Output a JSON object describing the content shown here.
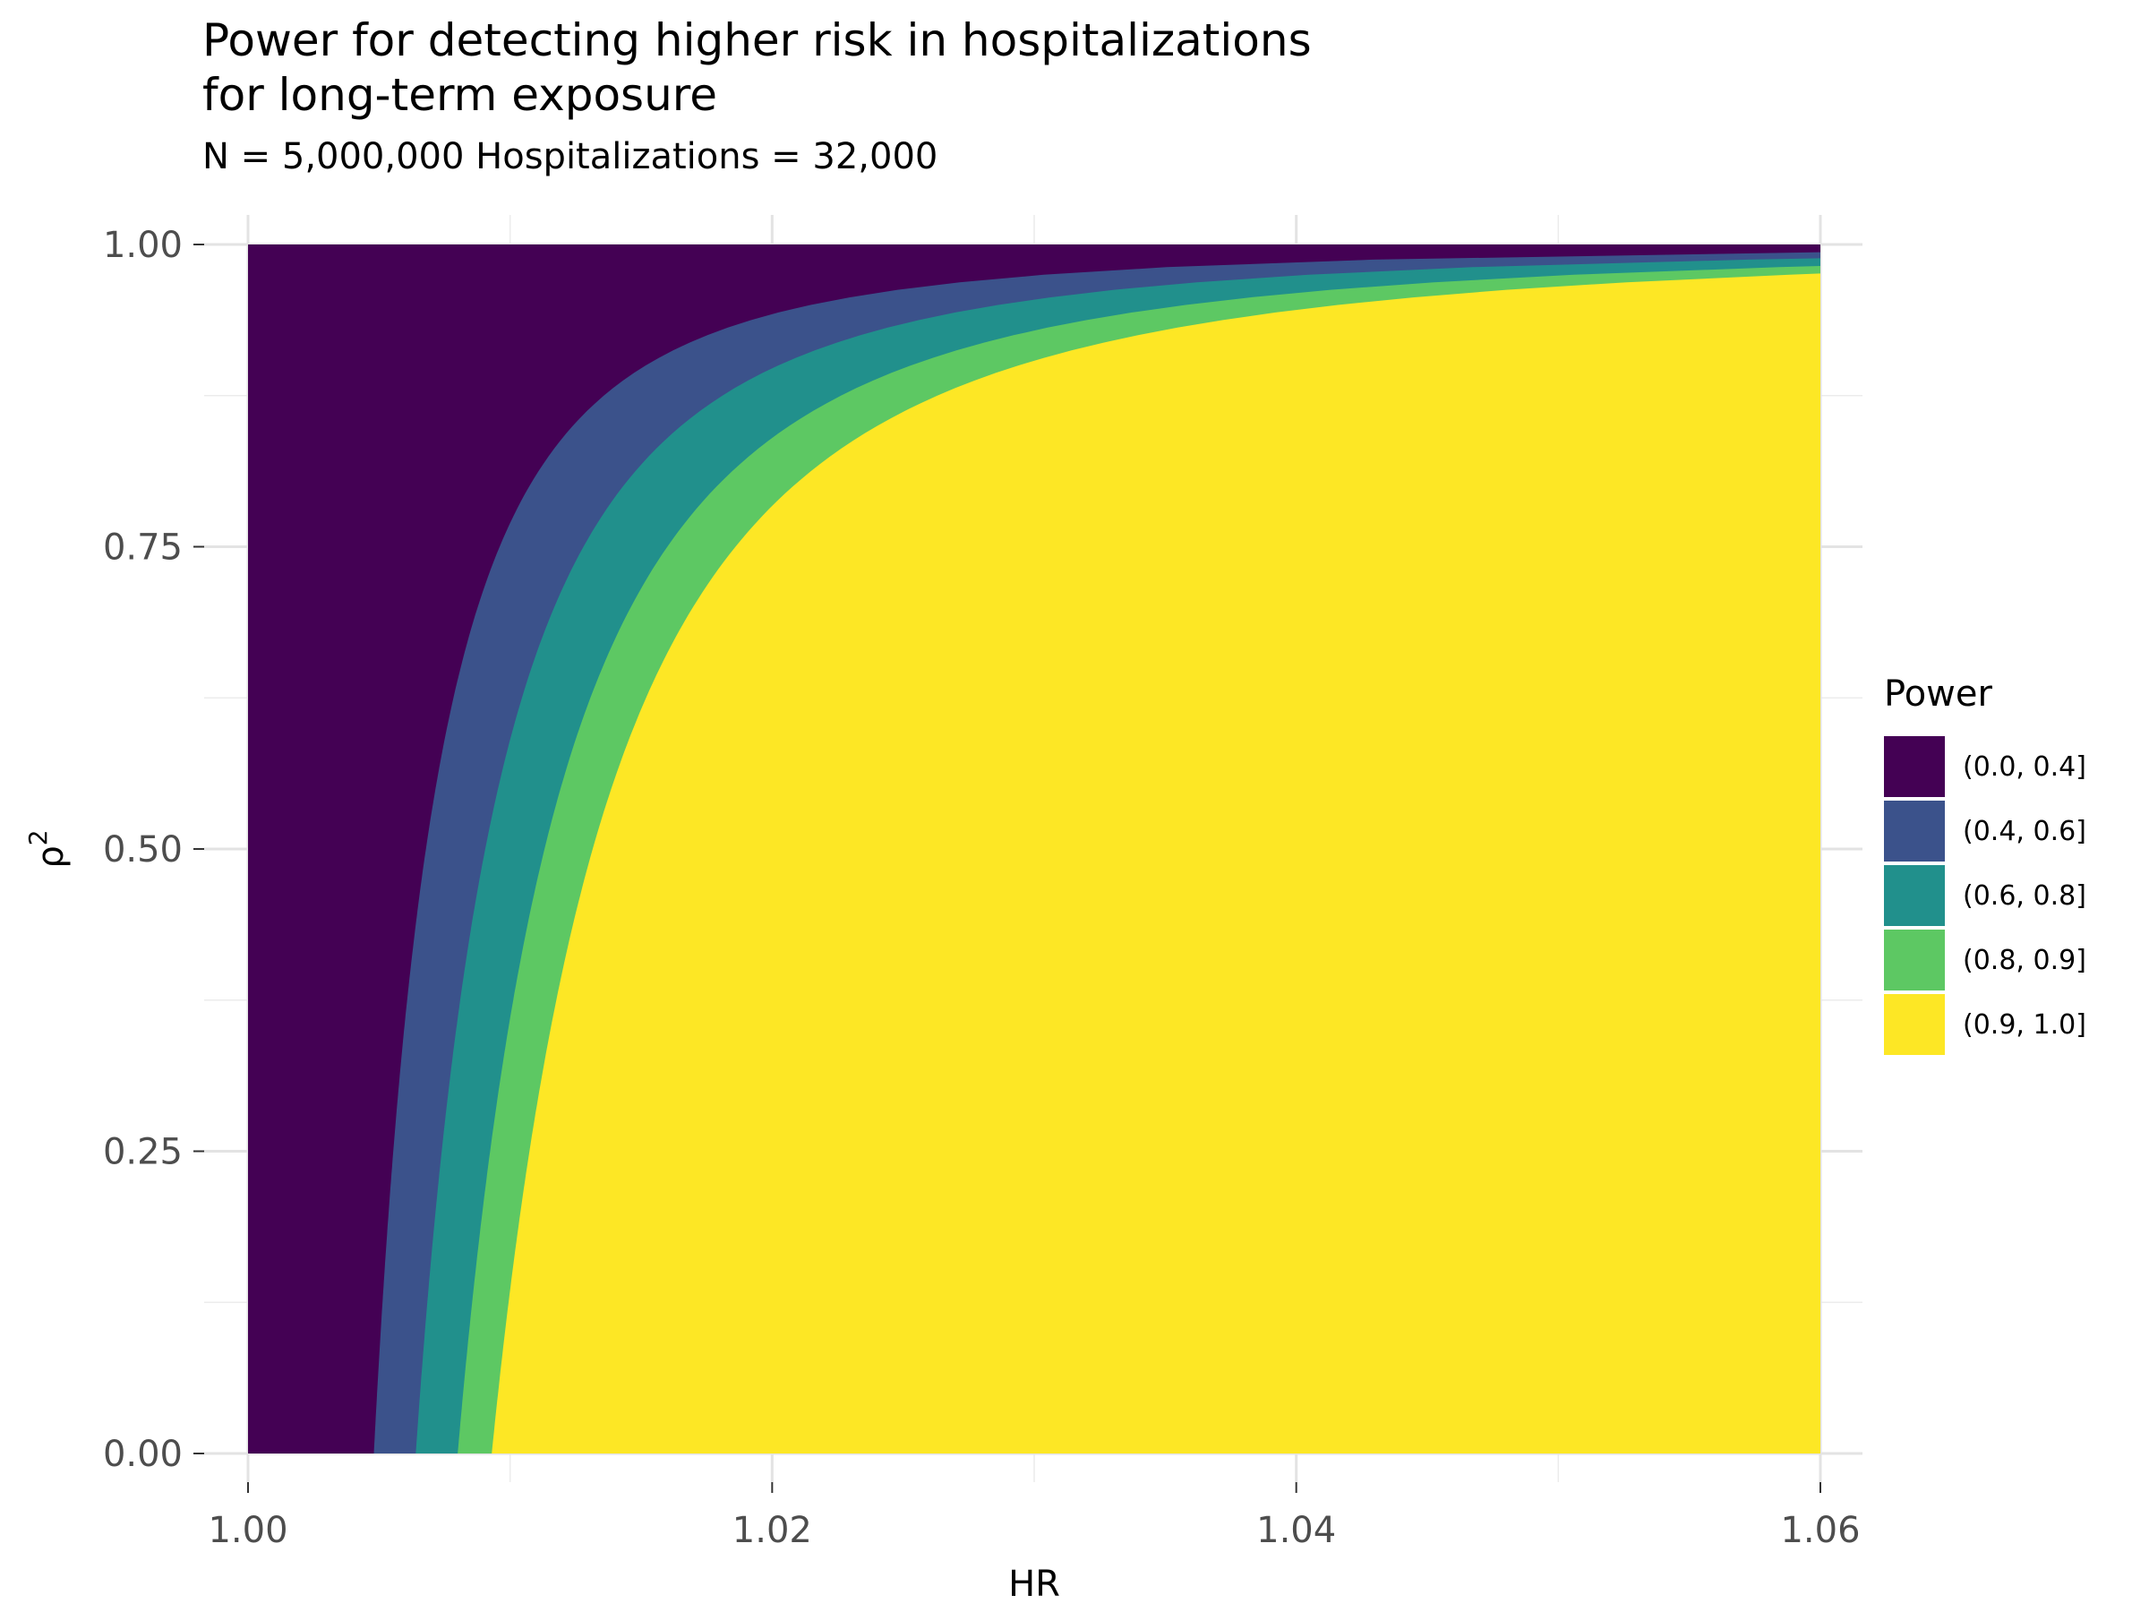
{
  "title_lines": [
    "Power for detecting higher risk in hospitalizations",
    "for long-term exposure"
  ],
  "subtitle": "N = 5,000,000  Hospitalizations = 32,000",
  "chart_data": {
    "type": "area",
    "xlabel": "HR",
    "ylabel": "ρ",
    "ylabel_superscript": "2",
    "xlim": [
      1.0,
      1.06
    ],
    "ylim": [
      0.0,
      1.0
    ],
    "x_ticks": [
      {
        "value": 1.0,
        "label": "1.00"
      },
      {
        "value": 1.02,
        "label": "1.02"
      },
      {
        "value": 1.04,
        "label": "1.04"
      },
      {
        "value": 1.06,
        "label": "1.06"
      }
    ],
    "y_ticks": [
      {
        "value": 0.0,
        "label": "0.00"
      },
      {
        "value": 0.25,
        "label": "0.25"
      },
      {
        "value": 0.5,
        "label": "0.50"
      },
      {
        "value": 0.75,
        "label": "0.75"
      },
      {
        "value": 1.0,
        "label": "1.00"
      }
    ],
    "grid": true,
    "legend_placement": "right",
    "legend_title": "Power",
    "boundaries": [
      {
        "between": [
          "(0.0, 0.4]",
          "(0.4, 0.6]"
        ],
        "hr_at_rho2_0": 1.0048
      },
      {
        "between": [
          "(0.4, 0.6]",
          "(0.6, 0.8]"
        ],
        "hr_at_rho2_0": 1.0064
      },
      {
        "between": [
          "(0.6, 0.8]",
          "(0.8, 0.9]"
        ],
        "hr_at_rho2_0": 1.008
      },
      {
        "between": [
          "(0.8, 0.9]",
          "(0.9, 1.0]"
        ],
        "hr_at_rho2_0": 1.0093
      }
    ],
    "series": [
      {
        "name": "(0.0, 0.4]",
        "color": "#440154"
      },
      {
        "name": "(0.4, 0.6]",
        "color": "#3B528B"
      },
      {
        "name": "(0.6, 0.8]",
        "color": "#21908C"
      },
      {
        "name": "(0.8, 0.9]",
        "color": "#5DC863"
      },
      {
        "name": "(0.9, 1.0]",
        "color": "#FDE725"
      }
    ]
  }
}
